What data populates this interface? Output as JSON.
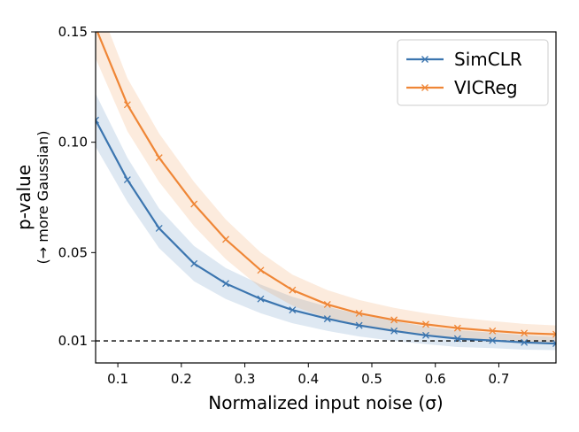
{
  "chart_data": {
    "type": "line",
    "title": "",
    "xlabel": "Normalized input noise (σ)",
    "ylabel": "p-value",
    "ylabel_sub": "(→ more Gaussian)",
    "xlim": [
      0.065,
      0.79
    ],
    "ylim": [
      0.0,
      0.15
    ],
    "xticks": [
      0.1,
      0.2,
      0.3,
      0.4,
      0.5,
      0.6,
      0.7
    ],
    "xtick_labels": [
      "0.1",
      "0.2",
      "0.3",
      "0.4",
      "0.5",
      "0.6",
      "0.7"
    ],
    "yticks": [
      0.01,
      0.05,
      0.1,
      0.15
    ],
    "ytick_labels": [
      "0.01",
      "0.05",
      "0.10",
      "0.15"
    ],
    "reference_line": {
      "y": 0.01,
      "style": "dashed",
      "color": "#000000"
    },
    "grid": false,
    "legend_position": "top-right",
    "x": [
      0.065,
      0.115,
      0.165,
      0.22,
      0.27,
      0.325,
      0.375,
      0.43,
      0.48,
      0.535,
      0.585,
      0.635,
      0.69,
      0.74,
      0.79
    ],
    "series": [
      {
        "name": "SimCLR",
        "color": "#3b75af",
        "values": [
          0.11,
          0.083,
          0.061,
          0.045,
          0.036,
          0.029,
          0.024,
          0.02,
          0.017,
          0.0145,
          0.0125,
          0.011,
          0.0102,
          0.0093,
          0.0088
        ],
        "band_width": [
          0.012,
          0.01,
          0.009,
          0.008,
          0.007,
          0.0065,
          0.006,
          0.0055,
          0.005,
          0.0045,
          0.004,
          0.0038,
          0.0035,
          0.0033,
          0.003
        ]
      },
      {
        "name": "VICReg",
        "color": "#ef8636",
        "values": [
          0.152,
          0.117,
          0.093,
          0.072,
          0.056,
          0.042,
          0.033,
          0.0265,
          0.0225,
          0.0195,
          0.0175,
          0.0158,
          0.0145,
          0.0135,
          0.013
        ],
        "band_width": [
          0.014,
          0.012,
          0.011,
          0.01,
          0.009,
          0.008,
          0.007,
          0.0065,
          0.006,
          0.0055,
          0.005,
          0.0048,
          0.0045,
          0.0042,
          0.004
        ]
      }
    ]
  }
}
